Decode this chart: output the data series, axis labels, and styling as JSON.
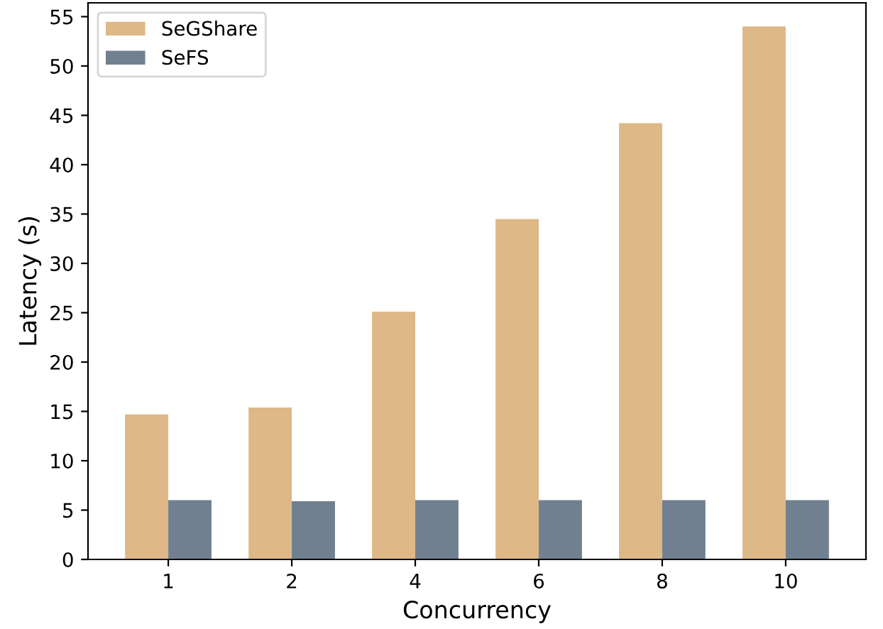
{
  "chart_data": {
    "type": "bar",
    "xlabel": "Concurrency",
    "ylabel": "Latency (s)",
    "categories": [
      "1",
      "2",
      "4",
      "6",
      "8",
      "10"
    ],
    "series": [
      {
        "name": "SeGShare",
        "color": "#deb887",
        "values": [
          14.7,
          15.4,
          25.1,
          34.5,
          44.2,
          54.0
        ]
      },
      {
        "name": "SeFS",
        "color": "#708090",
        "values": [
          6.0,
          5.9,
          6.0,
          6.0,
          6.0,
          6.0
        ]
      }
    ],
    "ylim": [
      0,
      56.4
    ],
    "yticks": [
      0,
      5,
      10,
      15,
      20,
      25,
      30,
      35,
      40,
      45,
      50,
      55
    ],
    "grid": false,
    "legend": "top left"
  }
}
